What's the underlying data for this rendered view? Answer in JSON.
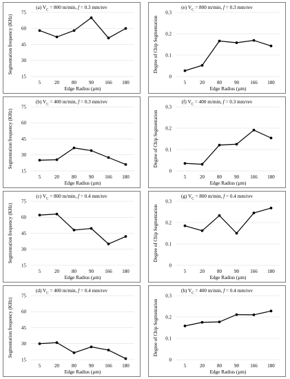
{
  "chart_data": [
    {
      "type": "line",
      "panel": "a",
      "title": "(a) V",
      "title_sub": "C",
      "title_rest": " = 800 m/min, ",
      "title_f": "f",
      "title_tail": " = 0.3 mm/rev",
      "ylabel": "Segmentation frequency (KHz)",
      "xlabel": "Edge Radius (µm)",
      "categories": [
        "5",
        "20",
        "80",
        "90",
        "166",
        "180"
      ],
      "values": [
        58,
        52,
        58,
        70,
        51,
        60
      ],
      "ylim": [
        15,
        75
      ],
      "yticks": [
        "15",
        "30",
        "45",
        "60",
        "75"
      ]
    },
    {
      "type": "line",
      "panel": "b",
      "title": "(b) V",
      "title_sub": "C",
      "title_rest": " = 400 m/min, ",
      "title_f": "f",
      "title_tail": " = 0.3 mm/rev",
      "ylabel": "Segmentation frequency (KHz)",
      "xlabel": "Edge Radius (µm)",
      "categories": [
        "5",
        "20",
        "80",
        "90",
        "166",
        "180"
      ],
      "values": [
        25,
        25.5,
        36.5,
        34,
        27.5,
        21
      ],
      "ylim": [
        15,
        75
      ],
      "yticks": [
        "15",
        "30",
        "45",
        "60",
        "75"
      ]
    },
    {
      "type": "line",
      "panel": "c",
      "title": "(c) V",
      "title_sub": "C",
      "title_rest": " = 800 m/min, ",
      "title_f": "f",
      "title_tail": " = 0.4 mm/rev",
      "ylabel": "Segmentation frequency (KHz)",
      "xlabel": "Edge Radius (µm)",
      "categories": [
        "5",
        "20",
        "80",
        "90",
        "166",
        "180"
      ],
      "values": [
        62,
        63,
        48,
        49.5,
        35,
        42
      ],
      "ylim": [
        15,
        75
      ],
      "yticks": [
        "15",
        "30",
        "45",
        "60",
        "75"
      ]
    },
    {
      "type": "line",
      "panel": "d",
      "title": "(d) V",
      "title_sub": "C",
      "title_rest": " = 400 m/min, ",
      "title_f": "f",
      "title_tail": " = 0.4 mm/rev",
      "ylabel": "Segmentation frequency (KHz)",
      "xlabel": "Edge Radius (µm)",
      "categories": [
        "5",
        "20",
        "80",
        "90",
        "166",
        "180"
      ],
      "values": [
        30,
        31,
        21.5,
        27,
        24,
        16
      ],
      "ylim": [
        15,
        75
      ],
      "yticks": [
        "15",
        "30",
        "45",
        "60",
        "75"
      ]
    },
    {
      "type": "line",
      "panel": "e",
      "title": "(e) V",
      "title_sub": "C",
      "title_rest": " = 800 m/min, ",
      "title_f": "f",
      "title_tail": " = 0.3 mm/rev",
      "ylabel": "Degree of Chip Segmentation",
      "xlabel": "Edge Radius (µm)",
      "categories": [
        "5",
        "20",
        "80",
        "90",
        "166",
        "180"
      ],
      "values": [
        0.027,
        0.052,
        0.166,
        0.158,
        0.169,
        0.143
      ],
      "ylim": [
        0,
        0.3
      ],
      "yticks": [
        "0",
        "0.1",
        "0.2",
        "0.3"
      ]
    },
    {
      "type": "line",
      "panel": "f",
      "title": "(f) V",
      "title_sub": "C",
      "title_rest": " = 400 m/min, ",
      "title_f": "f",
      "title_tail": " = 0.3 mm/rev",
      "ylabel": "Degree of Chip Segmentation",
      "xlabel": "Edge Radius (µm)",
      "categories": [
        "5",
        "20",
        "80",
        "90",
        "166",
        "180"
      ],
      "values": [
        0.035,
        0.031,
        0.121,
        0.125,
        0.191,
        0.154
      ],
      "ylim": [
        0,
        0.3
      ],
      "yticks": [
        "0",
        "0.1",
        "0.2",
        "0.3"
      ]
    },
    {
      "type": "line",
      "panel": "g",
      "title": "(g) V",
      "title_sub": "C",
      "title_rest": " = 800 m/min, ",
      "title_f": "f",
      "title_tail": " = 0.4 mm/rev",
      "ylabel": "Degree of Chip Segmentation",
      "xlabel": "Edge Radius (µm)",
      "categories": [
        "5",
        "20",
        "80",
        "90",
        "166",
        "180"
      ],
      "values": [
        0.185,
        0.162,
        0.233,
        0.15,
        0.245,
        0.268
      ],
      "ylim": [
        0,
        0.3
      ],
      "yticks": [
        "0",
        "0.1",
        "0.2",
        "0.3"
      ]
    },
    {
      "type": "line",
      "panel": "h",
      "title": "(h) V",
      "title_sub": "C",
      "title_rest": " = 400 m/min, ",
      "title_f": "f",
      "title_tail": " = 0.4 mm/rev",
      "ylabel": "Degree of Chip Segmentation",
      "xlabel": "Edge Radius (µm)",
      "categories": [
        "5",
        "20",
        "80",
        "90",
        "166",
        "180"
      ],
      "values": [
        0.158,
        0.175,
        0.177,
        0.211,
        0.21,
        0.228
      ],
      "ylim": [
        0,
        0.3
      ],
      "yticks": [
        "0",
        "0.1",
        "0.2",
        "0.3"
      ]
    }
  ],
  "colors": {
    "line": "#000000",
    "marker": "#000000",
    "grid": "#d9d9d9",
    "border": "#7a7a7a"
  }
}
